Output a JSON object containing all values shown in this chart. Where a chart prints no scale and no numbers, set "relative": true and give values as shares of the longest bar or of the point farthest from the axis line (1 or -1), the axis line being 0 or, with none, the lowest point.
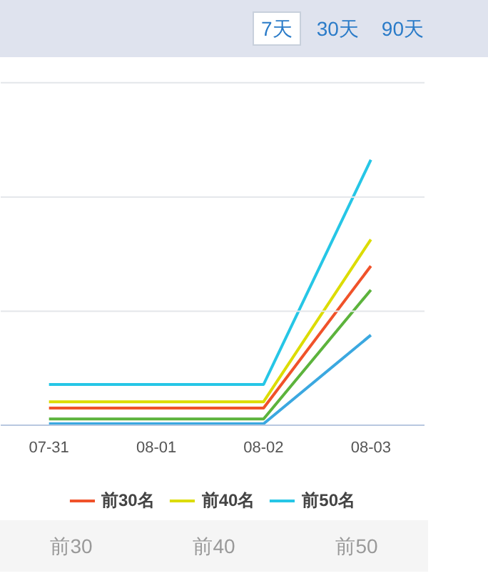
{
  "chart_data": {
    "type": "line",
    "relative": true,
    "ref_lines": [
      {
        "axis": "y",
        "value": 0.43,
        "color": "#e3e6ea"
      },
      {
        "axis": "y",
        "value": 0.86,
        "color": "#e3e6ea"
      },
      {
        "axis": "y",
        "value": 1.29,
        "color": "#e3e6ea"
      }
    ],
    "legend": "bottom",
    "marker": "none",
    "line_style": "solid",
    "categories": [
      "07-31",
      "08-01",
      "08-02",
      "08-03"
    ],
    "series": [
      {
        "color": "#3ba8e0",
        "values": [
          0.006,
          0.006,
          0.006,
          0.34
        ]
      },
      {
        "color": "#5cb33c",
        "values": [
          0.024,
          0.024,
          0.024,
          0.51
        ]
      },
      {
        "name": "前30名",
        "color": "#f0522a",
        "values": [
          0.065,
          0.065,
          0.065,
          0.6
        ]
      },
      {
        "name": "前40名",
        "color": "#dcdc00",
        "values": [
          0.089,
          0.089,
          0.089,
          0.7
        ]
      },
      {
        "name": "前50名",
        "color": "#26c6e6",
        "values": [
          0.154,
          0.154,
          0.154,
          1
        ]
      }
    ],
    "annotations": [
      "7天",
      "30天",
      "90天",
      "前30",
      "前40",
      "前50"
    ]
  }
}
